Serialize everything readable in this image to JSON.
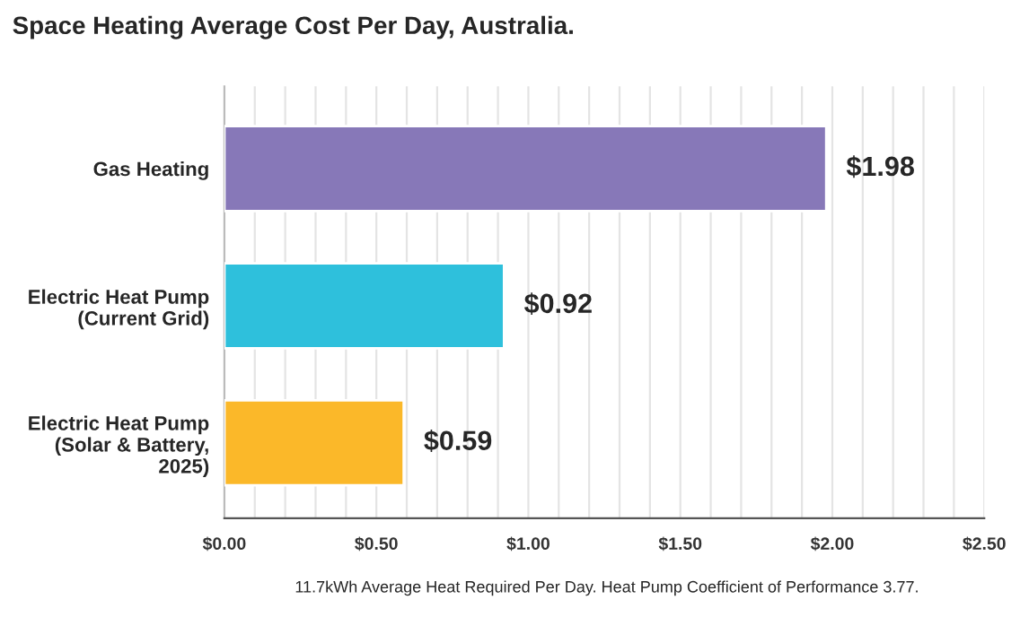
{
  "chart_data": {
    "type": "bar",
    "orientation": "horizontal",
    "title": "Space Heating Average Cost Per Day, Australia.",
    "categories": [
      "Gas Heating",
      "Electric Heat Pump\n(Current Grid)",
      "Electric Heat Pump\n(Solar & Battery,\n2025)"
    ],
    "values": [
      1.98,
      0.92,
      0.59
    ],
    "colors": [
      "#8778b8",
      "#2ec0dc",
      "#fbb829"
    ],
    "value_labels": [
      "$1.98",
      "$0.92",
      "$0.59"
    ],
    "xlim": [
      0,
      2.5
    ],
    "xticks": [
      {
        "value": 0,
        "label": "$0.00"
      },
      {
        "value": 0.1,
        "label": null
      },
      {
        "value": 0.2,
        "label": null
      },
      {
        "value": 0.3,
        "label": null
      },
      {
        "value": 0.4,
        "label": null
      },
      {
        "value": 0.5,
        "label": "$0.50"
      },
      {
        "value": 0.6,
        "label": null
      },
      {
        "value": 0.7,
        "label": null
      },
      {
        "value": 0.8,
        "label": null
      },
      {
        "value": 0.9,
        "label": null
      },
      {
        "value": 1.0,
        "label": "$1.00"
      },
      {
        "value": 1.1,
        "label": null
      },
      {
        "value": 1.2,
        "label": null
      },
      {
        "value": 1.3,
        "label": null
      },
      {
        "value": 1.4,
        "label": null
      },
      {
        "value": 1.5,
        "label": "$1.50"
      },
      {
        "value": 1.6,
        "label": null
      },
      {
        "value": 1.7,
        "label": null
      },
      {
        "value": 1.8,
        "label": null
      },
      {
        "value": 1.9,
        "label": null
      },
      {
        "value": 2.0,
        "label": "$2.00"
      },
      {
        "value": 2.1,
        "label": null
      },
      {
        "value": 2.2,
        "label": null
      },
      {
        "value": 2.3,
        "label": null
      },
      {
        "value": 2.4,
        "label": null
      },
      {
        "value": 2.5,
        "label": "$2.50"
      }
    ],
    "grid": "x",
    "annotations": [
      "11.7kWh Average Heat Required Per Day. Heat Pump Coefficient of Performance 3.77."
    ]
  }
}
